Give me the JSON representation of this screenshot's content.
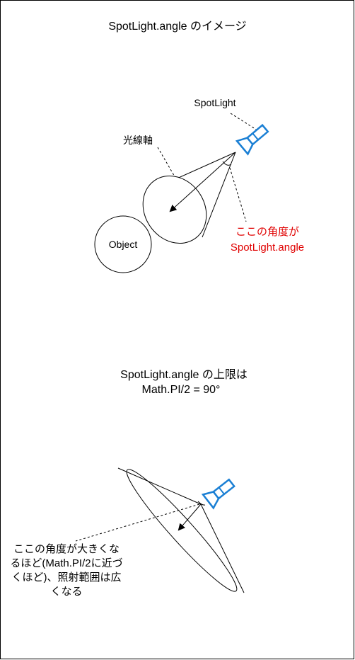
{
  "diagram1": {
    "title": "SpotLight.angle のイメージ",
    "spotlight_label": "SpotLight",
    "axis_label": "光線軸",
    "object_label": "Object",
    "angle_note_line1": "ここの角度が",
    "angle_note_line2": "SpotLight.angle"
  },
  "diagram2": {
    "title_line1": "SpotLight.angle の上限は",
    "title_line2": "Math.PI/2 = 90°",
    "note_line1": "ここの角度が大きくな",
    "note_line2": "るほど(Math.PI/2に近づ",
    "note_line3": "くほど)、照射範囲は広",
    "note_line4": "くなる"
  },
  "colors": {
    "stroke": "#000000",
    "flashlight": "#1a7fd4",
    "highlight_text": "#e00000"
  },
  "icons": [
    "flashlight-icon",
    "flashlight-icon"
  ]
}
